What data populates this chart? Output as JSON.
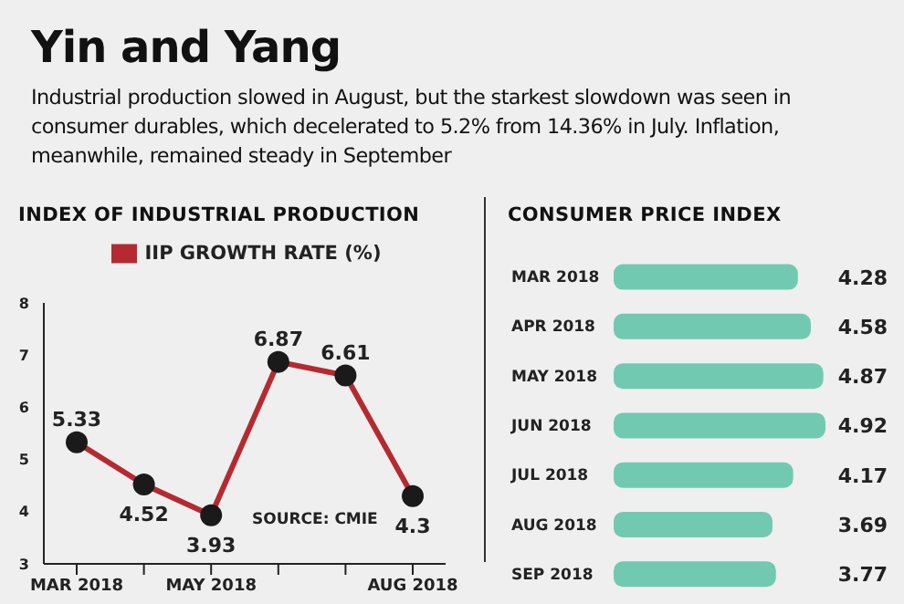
{
  "chart_data": [
    {
      "type": "line",
      "title": "INDEX OF INDUSTRIAL PRODUCTION",
      "annotations": [
        "Yin and Yang",
        "Industrial production slowed in August, but the starkest slowdown was seen in consumer durables, which decelerated to 5.2% from 14.36% in July. Inflation, meanwhile, remained steady in September",
        "SOURCE: CMIE"
      ],
      "categories": [
        "MAR 2018",
        null,
        "MAY 2018",
        null,
        null,
        "AUG 2018"
      ],
      "series": [
        {
          "name": "IIP GROWTH RATE (%)",
          "color": "#b52a30",
          "values": [
            5.33,
            4.52,
            3.93,
            6.87,
            6.61,
            4.3
          ]
        }
      ],
      "ylim": [
        3,
        8
      ],
      "yticks": [
        3,
        4,
        5,
        6,
        7,
        8
      ],
      "legend": "top",
      "marker": "circle",
      "data_labels": true
    },
    {
      "type": "bar",
      "orientation": "horizontal",
      "title": "CONSUMER PRICE INDEX",
      "categories": [
        "MAR 2018",
        "APR 2018",
        "MAY 2018",
        "JUN 2018",
        "JUL 2018",
        "AUG 2018",
        "SEP 2018"
      ],
      "values": [
        4.28,
        4.58,
        4.87,
        4.92,
        4.17,
        3.69,
        3.77
      ],
      "color": "#72c9b1",
      "data_labels": true
    }
  ]
}
